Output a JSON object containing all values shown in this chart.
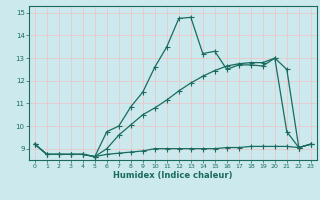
{
  "xlabel": "Humidex (Indice chaleur)",
  "bg_color": "#cce9ed",
  "grid_color": "#e8c8c8",
  "line_color": "#1a6b5e",
  "xlim": [
    -0.5,
    23.5
  ],
  "ylim": [
    8.5,
    15.3
  ],
  "xticks": [
    0,
    1,
    2,
    3,
    4,
    5,
    6,
    7,
    8,
    9,
    10,
    11,
    12,
    13,
    14,
    15,
    16,
    17,
    18,
    19,
    20,
    21,
    22,
    23
  ],
  "yticks": [
    9,
    10,
    11,
    12,
    13,
    14,
    15
  ],
  "line1_x": [
    0,
    1,
    2,
    3,
    4,
    5,
    6,
    7,
    8,
    9,
    10,
    11,
    12,
    13,
    14,
    15,
    16,
    17,
    18,
    19,
    20,
    21,
    22,
    23
  ],
  "line1_y": [
    9.2,
    8.75,
    8.75,
    8.75,
    8.75,
    8.65,
    9.75,
    10.0,
    10.85,
    11.5,
    12.6,
    13.5,
    14.75,
    14.8,
    13.2,
    13.3,
    12.5,
    12.7,
    12.7,
    12.65,
    13.0,
    9.75,
    9.05,
    9.2
  ],
  "line2_x": [
    0,
    1,
    2,
    3,
    4,
    5,
    6,
    7,
    8,
    9,
    10,
    11,
    12,
    13,
    14,
    15,
    16,
    17,
    18,
    19,
    20,
    21,
    22,
    23
  ],
  "line2_y": [
    9.2,
    8.75,
    8.75,
    8.75,
    8.75,
    8.65,
    9.0,
    9.6,
    10.05,
    10.5,
    10.8,
    11.15,
    11.55,
    11.9,
    12.2,
    12.45,
    12.65,
    12.75,
    12.8,
    12.8,
    13.0,
    12.5,
    9.05,
    9.2
  ],
  "line3_x": [
    0,
    1,
    2,
    3,
    4,
    5,
    6,
    7,
    8,
    9,
    10,
    11,
    12,
    13,
    14,
    15,
    16,
    17,
    18,
    19,
    20,
    21,
    22,
    23
  ],
  "line3_y": [
    9.2,
    8.75,
    8.75,
    8.75,
    8.75,
    8.65,
    8.75,
    8.8,
    8.85,
    8.9,
    9.0,
    9.0,
    9.0,
    9.0,
    9.0,
    9.0,
    9.05,
    9.05,
    9.1,
    9.1,
    9.1,
    9.1,
    9.05,
    9.2
  ]
}
